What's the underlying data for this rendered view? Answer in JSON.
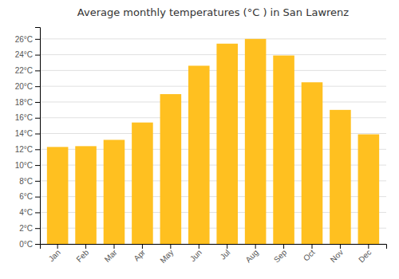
{
  "chart_data": {
    "type": "bar",
    "title": "Average monthly temperatures (°C ) in San Lawrenz",
    "categories": [
      "Jan",
      "Feb",
      "Mar",
      "Apr",
      "May",
      "Jun",
      "Jul",
      "Aug",
      "Sep",
      "Oct",
      "Nov",
      "Dec"
    ],
    "values": [
      12.3,
      12.4,
      13.2,
      15.4,
      19.0,
      22.6,
      25.4,
      26.0,
      23.9,
      20.5,
      17.0,
      13.9
    ],
    "color": "#FFC020",
    "ylim": [
      0,
      27.5
    ],
    "yticks": [
      {
        "value": 0,
        "label": "0°C"
      },
      {
        "value": 2,
        "label": "2°C"
      },
      {
        "value": 4,
        "label": "4°C"
      },
      {
        "value": 6,
        "label": "6°C"
      },
      {
        "value": 8,
        "label": "8°C"
      },
      {
        "value": 10,
        "label": "10°C"
      },
      {
        "value": 12,
        "label": "12°C"
      },
      {
        "value": 14,
        "label": "14°C"
      },
      {
        "value": 16,
        "label": "16°C"
      },
      {
        "value": 18,
        "label": "18°C"
      },
      {
        "value": 20,
        "label": "20°C"
      },
      {
        "value": 22,
        "label": "22°C"
      },
      {
        "value": 24,
        "label": "24°C"
      },
      {
        "value": 26,
        "label": "26°C"
      }
    ],
    "grid": true
  }
}
